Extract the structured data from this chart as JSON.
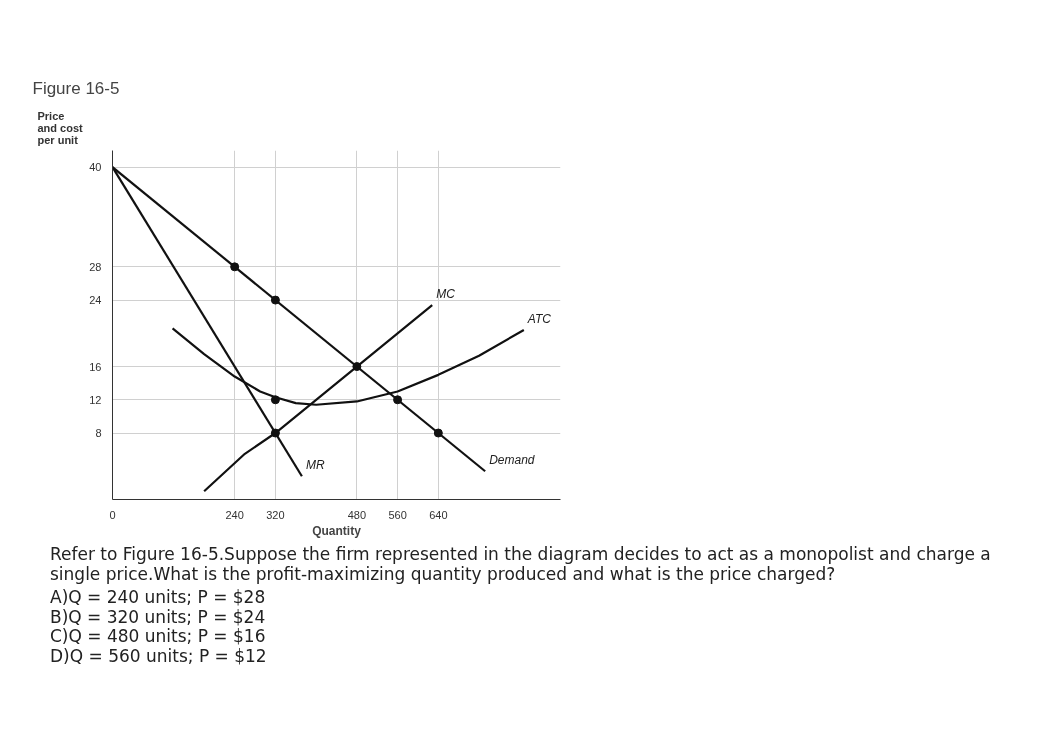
{
  "chart_data": {
    "type": "line",
    "title": "Figure 16-5",
    "ylabel": "Price\nand cost\nper unit",
    "xlabel": "Quantity",
    "xlim": [
      0,
      880
    ],
    "ylim": [
      0,
      42
    ],
    "xticks": [
      0,
      240,
      320,
      480,
      560,
      640
    ],
    "yticks": [
      8,
      12,
      16,
      24,
      28,
      40
    ],
    "grid": true,
    "marker": "none",
    "line_style": "solid",
    "series": [
      {
        "name": "Demand",
        "color": "#111111",
        "x": [
          0,
          732
        ],
        "values": [
          40,
          3.4
        ]
      },
      {
        "name": "MR",
        "color": "#111111",
        "x": [
          0,
          372
        ],
        "values": [
          40,
          2.8
        ]
      },
      {
        "name": "MC",
        "color": "#111111",
        "x": [
          180,
          260,
          320,
          400,
          480,
          560,
          628
        ],
        "values": [
          1,
          5.5,
          8,
          12,
          16,
          20,
          23.4
        ]
      },
      {
        "name": "ATC",
        "color": "#111111",
        "x": [
          118,
          180,
          240,
          290,
          320,
          360,
          400,
          480,
          560,
          640,
          720,
          808
        ],
        "values": [
          20.6,
          17.5,
          14.8,
          13,
          12.3,
          11.6,
          11.4,
          11.8,
          13,
          15,
          17.3,
          20.4
        ]
      },
      {
        "type": "scatter",
        "marker": "circle",
        "color": "#111111",
        "x": [
          240,
          320,
          480,
          560,
          640,
          320,
          320
        ],
        "values": [
          28,
          24,
          16,
          12,
          8,
          12,
          8
        ]
      }
    ],
    "annotations": [
      "Refer to Figure 16-5.Suppose the firm represented in the diagram decides to act as a monopolist and charge a single price.What is the profit-maximizing quantity produced and what is the price charged?",
      "A)Q = 240 units; P = $28",
      "B)Q = 320 units; P = $24",
      "C)Q = 480 units; P = $16",
      "D)Q = 560 units; P = $12"
    ]
  }
}
